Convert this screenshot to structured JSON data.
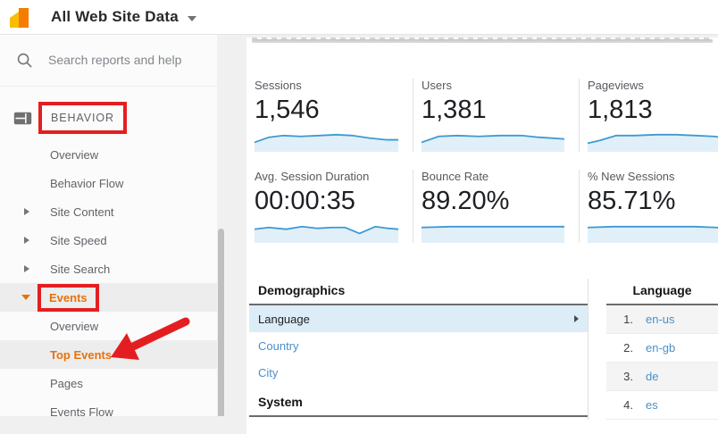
{
  "colors": {
    "accent_orange": "#e8710a",
    "link_blue": "#4a90ca",
    "annotation_red": "#e41e20",
    "selected_row_blue": "#dcedf8",
    "spark_line": "#3d9ad2",
    "spark_fill": "#e1eff9",
    "logo_yellow": "#fbbc04",
    "logo_orange": "#f57c00"
  },
  "topbar": {
    "title": "All Web Site Data"
  },
  "search": {
    "placeholder": "Search reports and help"
  },
  "sidebar": {
    "section_label": "BEHAVIOR",
    "items": [
      {
        "label": "Overview"
      },
      {
        "label": "Behavior Flow"
      },
      {
        "label": "Site Content"
      },
      {
        "label": "Site Speed"
      },
      {
        "label": "Site Search"
      },
      {
        "label": "Events"
      },
      {
        "label": "Overview"
      },
      {
        "label": "Top Events"
      },
      {
        "label": "Pages"
      },
      {
        "label": "Events Flow"
      }
    ]
  },
  "chart_data": {
    "type": "table",
    "title": "Audience overview metric summary with sparklines",
    "metrics": {
      "row1": [
        {
          "label": "Sessions",
          "value": "1,546",
          "spark": [
            [
              0,
              13
            ],
            [
              10,
              7
            ],
            [
              20,
              5
            ],
            [
              32,
              6
            ],
            [
              45,
              5
            ],
            [
              57,
              4
            ],
            [
              68,
              5
            ],
            [
              80,
              8
            ],
            [
              92,
              10
            ],
            [
              100,
              10
            ]
          ]
        },
        {
          "label": "Users",
          "value": "1,381",
          "spark": [
            [
              0,
              13
            ],
            [
              12,
              6
            ],
            [
              25,
              5
            ],
            [
              40,
              6
            ],
            [
              55,
              5
            ],
            [
              70,
              5
            ],
            [
              82,
              7
            ],
            [
              100,
              9
            ]
          ]
        },
        {
          "label": "Pageviews",
          "value": "1,813",
          "spark": [
            [
              0,
              14
            ],
            [
              8,
              11
            ],
            [
              20,
              5
            ],
            [
              33,
              5
            ],
            [
              48,
              4
            ],
            [
              62,
              4
            ],
            [
              76,
              5
            ],
            [
              88,
              6
            ],
            [
              100,
              8
            ]
          ]
        }
      ],
      "row2": [
        {
          "label": "Avg. Session Duration",
          "value": "00:00:35",
          "spark": [
            [
              0,
              8
            ],
            [
              10,
              6
            ],
            [
              22,
              8
            ],
            [
              33,
              5
            ],
            [
              44,
              7
            ],
            [
              54,
              6
            ],
            [
              63,
              6
            ],
            [
              73,
              13
            ],
            [
              84,
              5
            ],
            [
              93,
              7
            ],
            [
              100,
              8
            ]
          ]
        },
        {
          "label": "Bounce Rate",
          "value": "89.20%",
          "spark": [
            [
              0,
              6
            ],
            [
              20,
              5
            ],
            [
              40,
              5
            ],
            [
              60,
              5
            ],
            [
              80,
              5
            ],
            [
              100,
              5
            ]
          ]
        },
        {
          "label": "% New Sessions",
          "value": "85.71%",
          "spark": [
            [
              0,
              6
            ],
            [
              18,
              5
            ],
            [
              36,
              5
            ],
            [
              55,
              5
            ],
            [
              75,
              5
            ],
            [
              90,
              6
            ],
            [
              100,
              7
            ]
          ]
        }
      ]
    }
  },
  "demographics": {
    "title": "Demographics",
    "rows": [
      {
        "label": "Language"
      },
      {
        "label": "Country"
      },
      {
        "label": "City"
      }
    ],
    "system_title": "System"
  },
  "language_table": {
    "header": "Language",
    "rows": [
      {
        "rank": "1.",
        "value": "en-us"
      },
      {
        "rank": "2.",
        "value": "en-gb"
      },
      {
        "rank": "3.",
        "value": "de"
      },
      {
        "rank": "4.",
        "value": "es"
      }
    ]
  }
}
